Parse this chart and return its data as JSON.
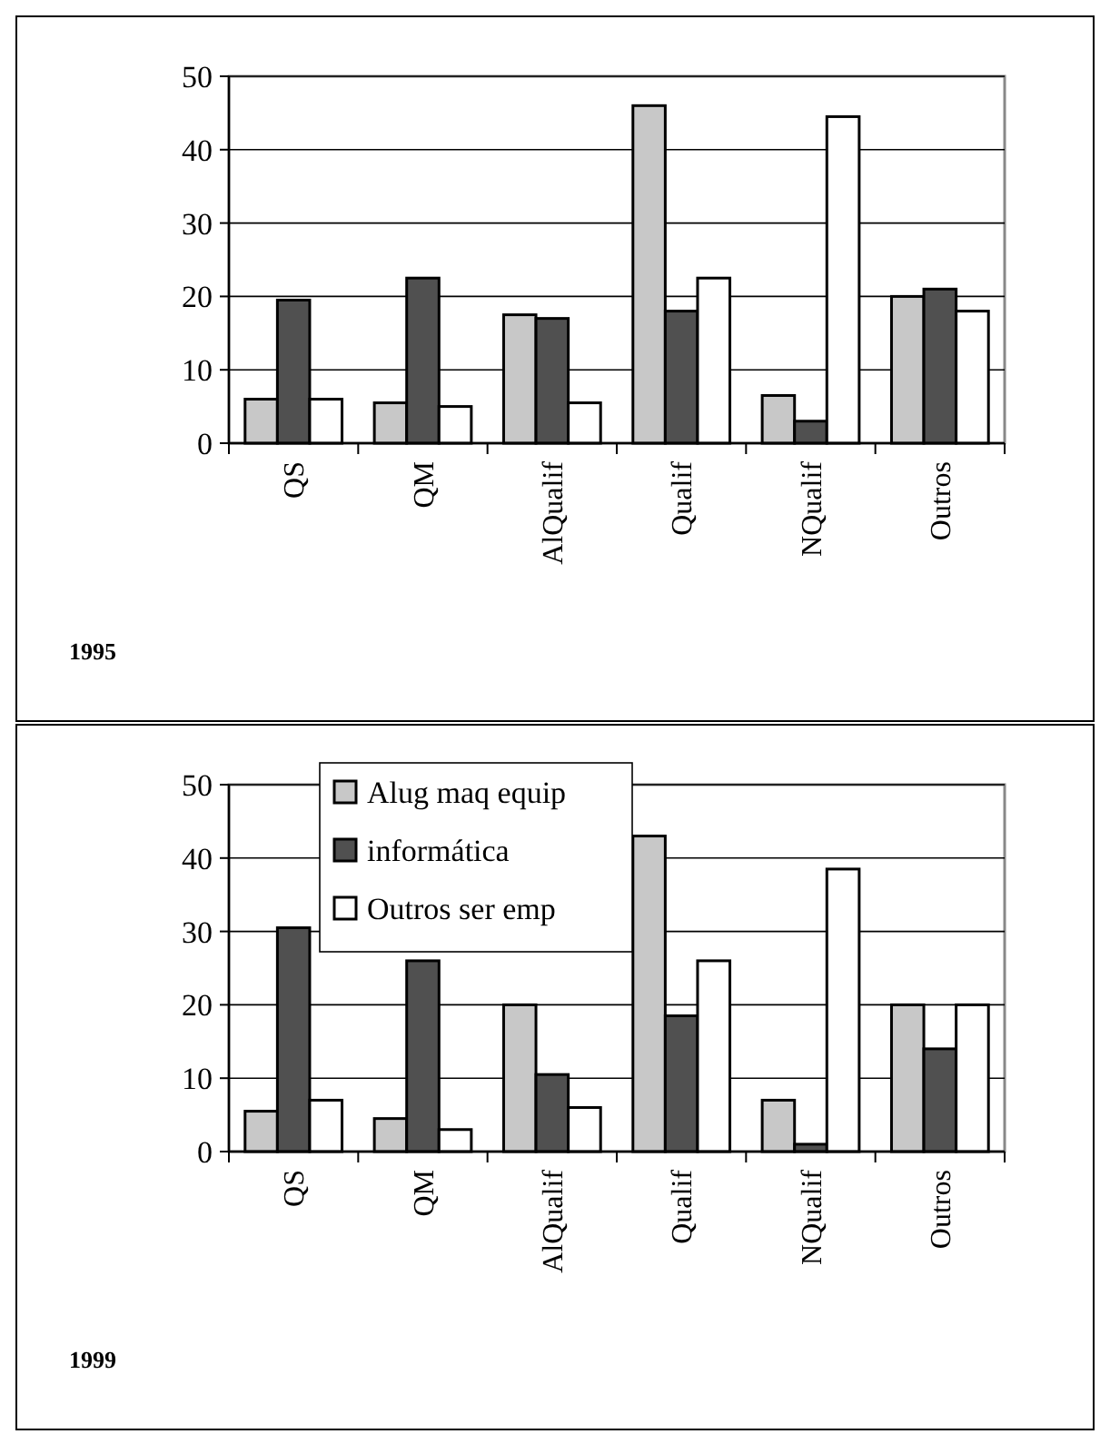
{
  "chart_data": [
    {
      "type": "bar",
      "title": "1995",
      "categories": [
        "QS",
        "QM",
        "AlQualif",
        "Qualif",
        "NQualif",
        "Outros"
      ],
      "ylim": [
        0,
        50
      ],
      "yticks": [
        0,
        10,
        20,
        30,
        40,
        50
      ],
      "grid": "y",
      "legend": false,
      "series": [
        {
          "color": "#c8c8c8",
          "values": [
            6,
            5.5,
            17.5,
            46,
            6.5,
            20
          ]
        },
        {
          "color": "#505050",
          "values": [
            19.5,
            22.5,
            17,
            18,
            3,
            21
          ]
        },
        {
          "color": "#ffffff",
          "values": [
            6,
            5,
            5.5,
            22.5,
            44.5,
            18
          ]
        }
      ]
    },
    {
      "type": "bar",
      "title": "1999",
      "categories": [
        "QS",
        "QM",
        "AlQualif",
        "Qualif",
        "NQualif",
        "Outros"
      ],
      "ylim": [
        0,
        50
      ],
      "yticks": [
        0,
        10,
        20,
        30,
        40,
        50
      ],
      "grid": "y",
      "legend": "top left",
      "series": [
        {
          "name": "Alug maq equip",
          "color": "#c8c8c8",
          "values": [
            5.5,
            4.5,
            20,
            43,
            7,
            20
          ]
        },
        {
          "name": "informática",
          "color": "#505050",
          "values": [
            30.5,
            26,
            10.5,
            18.5,
            1,
            14
          ]
        },
        {
          "name": "Outros ser emp",
          "color": "#ffffff",
          "values": [
            7,
            3,
            6,
            26,
            38.5,
            20
          ]
        }
      ]
    }
  ]
}
